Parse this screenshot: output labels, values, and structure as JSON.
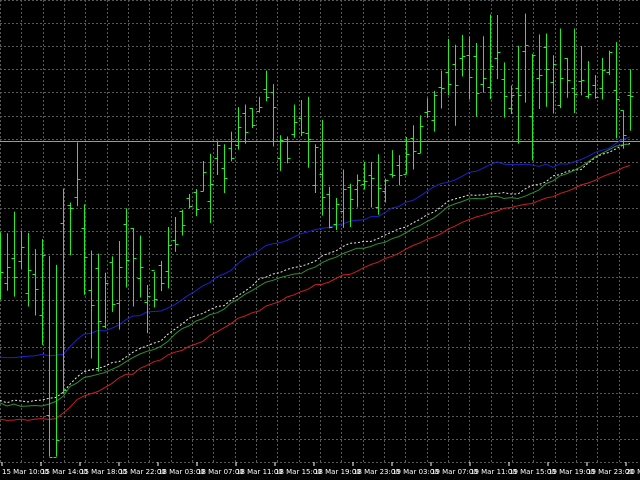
{
  "colors": {
    "background": "#000000",
    "grid": "#585858",
    "bars": "#22ee22",
    "blue_line": "#1a22cc",
    "red_line": "#cc1f1f",
    "dark_green_line": "#2f8f2f",
    "white_dotted_line": "#e8e8e8",
    "price_line": "#9a9a9a",
    "axis_text": "#ffffff"
  },
  "chart_data": {
    "type": "line",
    "style": "ohlc bars with four moving-average lines",
    "grid": true,
    "legend": "none",
    "xlabel": "",
    "ylabel": "",
    "ylim": [
      0,
      100
    ],
    "x_tick_labels": [
      "15 Mar 10:00",
      "15 Mar 14:00",
      "15 Mar 18:00",
      "15 Mar 22:00",
      "18 Mar 03:00",
      "18 Mar 07:00",
      "18 Mar 11:00",
      "18 Mar 15:00",
      "18 Mar 19:00",
      "18 Mar 23:00",
      "19 Mar 03:00",
      "19 Mar 07:00",
      "19 Mar 11:00",
      "19 Mar 15:00",
      "19 Mar 19:00",
      "19 Mar 23:00",
      "20 Mar"
    ],
    "horizontal_line_level": 71,
    "bars": [
      [
        46.6,
        42.1,
        35.9,
        50.8
      ],
      [
        39.5,
        43.1,
        37.9,
        50.6
      ],
      [
        45.1,
        40.9,
        36.6,
        55.4
      ],
      [
        44.5,
        47.6,
        42.7,
        51.2
      ],
      [
        37.5,
        42.5,
        34.4,
        50.7
      ],
      [
        41.7,
        38.3,
        32.4,
        47.1
      ],
      [
        32.5,
        45.7,
        25.9,
        49.3
      ],
      [
        10.3,
        1.2,
        1.2,
        45.6
      ],
      [
        1.2,
        4.9,
        1.2,
        43.6
      ],
      [
        52.9,
        15.9,
        15.1,
        60.5
      ],
      [
        56.8,
        56.1,
        45.7,
        57.4
      ],
      [
        58.7,
        62.6,
        56.6,
        70.7
      ],
      [
        51.7,
        45.3,
        37.0,
        57.0
      ],
      [
        38.0,
        34.7,
        22.9,
        46.8
      ],
      [
        42.9,
        31.1,
        20.0,
        46.1
      ],
      [
        30.1,
        39.5,
        29.6,
        41.9
      ],
      [
        44.3,
        34.9,
        33.2,
        45.5
      ],
      [
        35.2,
        43.1,
        29.3,
        48.9
      ],
      [
        52.6,
        44.8,
        38.6,
        56.1
      ],
      [
        51.8,
        45.2,
        34.4,
        51.8
      ],
      [
        40.8,
        43.1,
        36.4,
        50.1
      ],
      [
        35.3,
        36.8,
        28.5,
        39.2
      ],
      [
        42.5,
        36.0,
        34.2,
        42.1
      ],
      [
        43.5,
        39.5,
        37.8,
        44.5
      ],
      [
        42.3,
        47.9,
        38.4,
        52.0
      ],
      [
        49.1,
        48.2,
        46.5,
        54.2
      ],
      [
        55.5,
        52.5,
        50.1,
        55.8
      ],
      [
        58.4,
        56.6,
        56.1,
        59.3
      ],
      [
        59.8,
        55.9,
        54.4,
        60.4
      ],
      [
        59.9,
        64.2,
        59.9,
        66.6
      ],
      [
        57.7,
        61.5,
        52.9,
        68.2
      ],
      [
        67.2,
        70.2,
        63.5,
        71.1
      ],
      [
        65.0,
        62.9,
        59.5,
        70.3
      ],
      [
        69.5,
        67.3,
        66.5,
        73.1
      ],
      [
        70.1,
        74.2,
        69.1,
        78.5
      ],
      [
        77.2,
        73.1,
        70.4,
        79.1
      ],
      [
        78.3,
        74.5,
        73.9,
        78.3
      ],
      [
        77.7,
        78.5,
        77.3,
        80.8
      ],
      [
        82.5,
        80.8,
        79.8,
        86.6
      ],
      [
        81.9,
        78.6,
        69.8,
        83.6
      ],
      [
        67.3,
        71.3,
        64.4,
        72.3
      ],
      [
        71.4,
        67.3,
        66.1,
        72.0
      ],
      [
        72.6,
        75.2,
        71.7,
        79.1
      ],
      [
        76.1,
        73.1,
        72.1,
        80.1
      ],
      [
        72.7,
        71.5,
        65.1,
        80.8
      ],
      [
        61.3,
        69.8,
        59.5,
        70.3
      ],
      [
        63.8,
        58.6,
        54.5,
        75.7
      ],
      [
        59.2,
        51.9,
        51.7,
        60.9
      ],
      [
        52.7,
        57.1,
        51.3,
        58.4
      ],
      [
        55.5,
        60.4,
        51.8,
        64.7
      ],
      [
        60.9,
        58.1,
        52.0,
        61.6
      ],
      [
        60.3,
        62.3,
        56.3,
        63.6
      ],
      [
        61.5,
        62.1,
        60.3,
        66.4
      ],
      [
        63.5,
        62.8,
        56.3,
        66.4
      ],
      [
        56.4,
        60.6,
        54.7,
        68.1
      ],
      [
        60.0,
        62.3,
        57.4,
        62.7
      ],
      [
        63.7,
        63.5,
        62.9,
        69.0
      ],
      [
        65.6,
        63.4,
        61.2,
        67.9
      ],
      [
        63.8,
        68.2,
        63.7,
        71.9
      ],
      [
        71.6,
        68.9,
        64.7,
        74.5
      ],
      [
        68.3,
        74.3,
        68.3,
        76.7
      ],
      [
        77.5,
        77.7,
        76.1,
        80.5
      ],
      [
        75.7,
        81.1,
        73.1,
        82.1
      ],
      [
        83.0,
        82.8,
        78.2,
        86.6
      ],
      [
        86.3,
        83.7,
        81.1,
        93.6
      ],
      [
        88.0,
        83.4,
        74.4,
        92.3
      ],
      [
        89.3,
        89.8,
        85.3,
        94.5
      ],
      [
        90.1,
        85.1,
        80.2,
        94.1
      ],
      [
        89.9,
        81.7,
        76.4,
        92.7
      ],
      [
        83.6,
        84.9,
        81.7,
        94.2
      ],
      [
        82.9,
        87.6,
        80.3,
        99.0
      ],
      [
        89.3,
        90.6,
        84.7,
        98.9
      ],
      [
        84.8,
        80.9,
        76.2,
        88.4
      ],
      [
        78.3,
        81.3,
        77.0,
        83.3
      ],
      [
        82.8,
        81.3,
        70.4,
        92.1
      ],
      [
        90.9,
        92.3,
        79.5,
        99.2
      ],
      [
        76.6,
        90.0,
        66.7,
        90.3
      ],
      [
        85.0,
        85.6,
        78.1,
        94.6
      ],
      [
        91.9,
        86.9,
        78.6,
        94.8
      ],
      [
        84.0,
        88.1,
        77.1,
        90.0
      ],
      [
        78.9,
        84.9,
        78.3,
        95.9
      ],
      [
        89.4,
        84.6,
        80.6,
        89.4
      ],
      [
        82.7,
        81.4,
        77.2,
        95.9
      ],
      [
        84.4,
        84.6,
        81.1,
        92.0
      ],
      [
        80.9,
        81.5,
        80.4,
        88.7
      ],
      [
        83.5,
        80.8,
        80.4,
        85.6
      ],
      [
        82.7,
        86.7,
        80.2,
        89.4
      ],
      [
        86.2,
        90.6,
        85.6,
        91.0
      ],
      [
        82.4,
        80.3,
        71.6,
        92.9
      ],
      [
        77.8,
        72.3,
        69.3,
        77.8
      ],
      [
        81.2,
        81.0,
        73.3,
        86.9
      ]
    ],
    "series": [
      {
        "color": "blue",
        "values": [
          23.2,
          23.1,
          23.1,
          23.3,
          23.4,
          23.5,
          23.8,
          23.5,
          23.6,
          23.8,
          25.5,
          27.1,
          28.3,
          28.5,
          29.1,
          29.0,
          29.6,
          30.3,
          31.5,
          32.3,
          32.4,
          33.2,
          33.3,
          33.4,
          34.1,
          34.8,
          35.9,
          37.0,
          37.9,
          39.0,
          39.7,
          41.0,
          41.6,
          42.4,
          43.9,
          45.1,
          45.9,
          46.8,
          47.9,
          48.3,
          48.5,
          49.0,
          49.8,
          50.5,
          50.9,
          51.4,
          51.7,
          51.9,
          52.4,
          52.7,
          53.3,
          53.5,
          53.6,
          54.3,
          54.3,
          55.2,
          56.2,
          56.5,
          57.5,
          57.9,
          58.8,
          59.9,
          60.9,
          61.6,
          61.9,
          62.4,
          63.2,
          64.1,
          64.3,
          65.0,
          65.8,
          66.4,
          65.9,
          65.8,
          65.8,
          65.9,
          65.7,
          65.4,
          65.9,
          65.2,
          66.0,
          65.9,
          66.4,
          66.9,
          67.6,
          68.5,
          69.0,
          69.4,
          70.5,
          71.4,
          71.9
        ]
      },
      {
        "color": "white-dotted",
        "values": [
          13.6,
          13.1,
          13.7,
          13.5,
          13.3,
          13.6,
          13.7,
          14.1,
          14.3,
          15.4,
          17.2,
          18.8,
          20.0,
          20.4,
          20.7,
          21.2,
          22.0,
          22.2,
          23.2,
          24.3,
          25.1,
          25.7,
          26.3,
          26.8,
          28.3,
          29.4,
          30.5,
          31.8,
          32.4,
          32.9,
          33.7,
          34.4,
          34.6,
          35.8,
          36.8,
          37.8,
          38.9,
          40.5,
          40.9,
          41.6,
          41.9,
          42.6,
          43.0,
          43.3,
          43.8,
          44.4,
          45.6,
          46.2,
          46.7,
          47.7,
          48.4,
          48.5,
          48.8,
          48.8,
          49.4,
          50.2,
          50.9,
          51.6,
          52.0,
          52.9,
          53.7,
          54.7,
          55.3,
          56.4,
          57.7,
          58.2,
          58.6,
          59.1,
          59.0,
          59.1,
          59.3,
          59.4,
          59.6,
          59.3,
          59.3,
          60.4,
          61.2,
          61.4,
          62.0,
          63.3,
          63.6,
          64.3,
          64.6,
          64.7,
          66.1,
          67.3,
          68.1,
          68.5,
          69.3,
          70.1,
          70.5
        ]
      },
      {
        "color": "dark-green",
        "values": [
          13.1,
          12.4,
          12.8,
          12.3,
          12.4,
          12.5,
          12.4,
          12.8,
          13.4,
          14.5,
          16.7,
          17.5,
          18.7,
          19.0,
          19.4,
          19.8,
          20.5,
          21.2,
          22.2,
          23.1,
          23.9,
          24.5,
          24.9,
          25.6,
          26.7,
          28.3,
          29.5,
          30.1,
          31.2,
          31.7,
          32.6,
          33.0,
          33.8,
          35.2,
          36.0,
          37.1,
          37.9,
          38.9,
          39.8,
          40.2,
          40.8,
          41.2,
          41.6,
          41.7,
          42.6,
          43.1,
          44.1,
          44.8,
          45.3,
          46.1,
          46.7,
          47.3,
          47.3,
          47.7,
          48.3,
          48.6,
          49.4,
          49.9,
          50.7,
          51.7,
          52.3,
          53.2,
          54.0,
          55.2,
          56.5,
          57.1,
          57.6,
          58.2,
          58.3,
          58.2,
          58.7,
          58.8,
          58.3,
          58.5,
          58.3,
          58.8,
          59.5,
          60.2,
          61.6,
          62.2,
          63.3,
          63.8,
          64.5,
          65.3,
          66.4,
          67.5,
          68.3,
          69.1,
          69.9,
          70.2,
          70.3
        ]
      },
      {
        "color": "red",
        "values": [
          9.5,
          9.2,
          9.3,
          9.5,
          9.2,
          9.5,
          9.6,
          9.4,
          9.6,
          10.8,
          12.1,
          13.8,
          14.6,
          15.1,
          15.6,
          16.5,
          17.4,
          18.6,
          19.4,
          19.4,
          20.7,
          21.4,
          22.2,
          22.6,
          23.7,
          24.3,
          24.7,
          25.6,
          26.1,
          26.7,
          28.0,
          28.8,
          29.7,
          30.6,
          31.8,
          32.3,
          33.0,
          33.4,
          34.5,
          35.0,
          35.5,
          36.5,
          37.0,
          37.7,
          38.2,
          39.2,
          39.3,
          39.8,
          40.6,
          41.4,
          41.5,
          42.2,
          43.0,
          43.7,
          44.2,
          45.0,
          45.5,
          46.2,
          47.1,
          47.9,
          48.5,
          49.3,
          49.8,
          50.5,
          51.5,
          52.2,
          53.0,
          53.6,
          54.2,
          54.6,
          55.1,
          55.5,
          56.1,
          56.3,
          56.7,
          57.0,
          57.2,
          57.8,
          58.4,
          58.7,
          59.4,
          59.9,
          60.5,
          61.3,
          61.7,
          62.3,
          63.1,
          63.7,
          64.2,
          65.1,
          65.6
        ]
      }
    ]
  }
}
